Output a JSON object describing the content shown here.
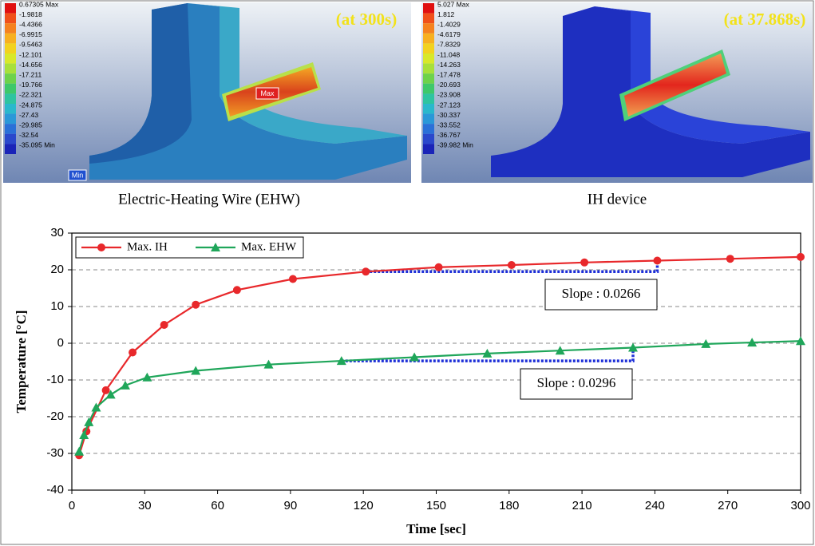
{
  "panels": [
    {
      "legend": [
        "0.67305 Max",
        "-1.9818",
        "-4.4366",
        "-6.9915",
        "-9.5463",
        "-12.101",
        "-14.656",
        "-17.211",
        "-19.766",
        "-22.321",
        "-24.875",
        "-27.43",
        "-29.985",
        "-32.54",
        "-35.095 Min"
      ],
      "time_label": "(at 300s)",
      "max_tag": "Max",
      "min_tag": "Min",
      "caption": "Electric-Heating Wire (EHW)"
    },
    {
      "legend": [
        "5.027 Max",
        "1.812",
        "-1.4029",
        "-4.6179",
        "-7.8329",
        "-11.048",
        "-14.263",
        "-17.478",
        "-20.693",
        "-23.908",
        "-27.123",
        "-30.337",
        "-33.552",
        "-36.767",
        "-39.982 Min"
      ],
      "time_label": "(at 37.868s)",
      "caption": "IH device"
    }
  ],
  "chart_data": {
    "type": "line",
    "xlabel": "Time [sec]",
    "ylabel": "Temperature [°C]",
    "xlim": [
      0,
      300
    ],
    "xticks": [
      0,
      30,
      60,
      90,
      120,
      150,
      180,
      210,
      240,
      270,
      300
    ],
    "ylim": [
      -40,
      30
    ],
    "yticks": [
      -40,
      -30,
      -20,
      -10,
      0,
      10,
      20,
      30
    ],
    "grid": true,
    "legend": "top-left",
    "series": [
      {
        "name": "Max. IH",
        "color": "#e8282b",
        "marker": "circle",
        "x": [
          3,
          6,
          14,
          25,
          38,
          51,
          68,
          91,
          121,
          151,
          181,
          211,
          241,
          271,
          300
        ],
        "values": [
          -30.5,
          -24,
          -12.8,
          -2.5,
          5,
          10.5,
          14.5,
          17.5,
          19.5,
          20.7,
          21.3,
          22,
          22.5,
          23,
          23.5
        ]
      },
      {
        "name": "Max. EHW",
        "color": "#1fa65a",
        "marker": "triangle",
        "x": [
          3,
          5,
          7,
          10,
          16,
          22,
          31,
          51,
          81,
          111,
          141,
          171,
          201,
          231,
          261,
          280,
          300
        ],
        "values": [
          -29.5,
          -25,
          -21.5,
          -17.5,
          -14,
          -11.5,
          -9.3,
          -7.5,
          -5.8,
          -4.8,
          -3.8,
          -2.8,
          -2,
          -1.2,
          -0.2,
          0.2,
          0.6
        ]
      }
    ],
    "annotations": [
      "Slope : 0.0266",
      "Slope : 0.0296"
    ]
  }
}
